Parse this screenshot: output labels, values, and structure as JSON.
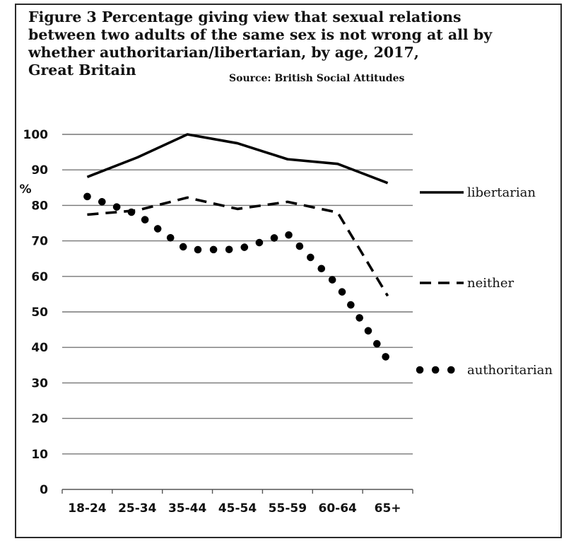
{
  "title_lines": [
    "Figure 3  Percentage giving view that sexual relations",
    "between two adults of the same sex is not wrong at all by",
    "whether authoritarian/libertarian, by age, 2017,",
    "Great Britain"
  ],
  "source": "Source: British Social Attitudes",
  "chart_data": {
    "type": "line",
    "ylabel": "%",
    "xlabel": "",
    "categories": [
      "18-24",
      "25-34",
      "35-44",
      "45-54",
      "55-59",
      "60-64",
      "65+"
    ],
    "ylim": [
      0,
      100
    ],
    "yticks": [
      0,
      10,
      20,
      30,
      40,
      50,
      60,
      70,
      80,
      90,
      100
    ],
    "grid": true,
    "legend_placement": "right",
    "series": [
      {
        "name": "libertarian",
        "style": "solid",
        "values": [
          88,
          93.5,
          100,
          97.5,
          93,
          91.7,
          86.3
        ]
      },
      {
        "name": "neither",
        "style": "dashed",
        "values": [
          77.4,
          78.6,
          82.2,
          79,
          81,
          78,
          54.5
        ]
      },
      {
        "name": "authoritarian",
        "style": "dotted",
        "values": [
          82.5,
          77.5,
          67.5,
          67.6,
          72,
          57.5,
          36.5
        ]
      }
    ]
  }
}
